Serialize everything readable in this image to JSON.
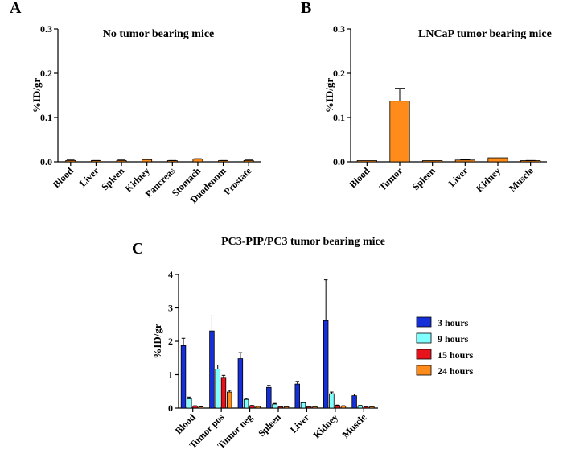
{
  "chart_data": [
    {
      "panel": "A",
      "type": "bar",
      "title": "No tumor bearing mice",
      "ylabel": "%ID/gr",
      "ylim": [
        0,
        0.3
      ],
      "yticks": [
        "0.0",
        "0.1",
        "0.2",
        "0.3"
      ],
      "categories": [
        "Blood",
        "Liver",
        "Spleen",
        "Kidney",
        "Pancreas",
        "Stomach",
        "Duodenum",
        "Prostate"
      ],
      "series": [
        {
          "name": "No tumor bearing mice",
          "color": "#FF8C1A",
          "values": [
            0.003,
            0.002,
            0.003,
            0.005,
            0.002,
            0.006,
            0.002,
            0.003
          ],
          "errors": [
            0.001,
            0.001,
            0.001,
            0.001,
            0.001,
            0.001,
            0.001,
            0.001
          ]
        }
      ]
    },
    {
      "panel": "B",
      "type": "bar",
      "title": "LNCaP  tumor bearing mice",
      "ylabel": "%ID/gr",
      "ylim": [
        0,
        0.3
      ],
      "yticks": [
        "0.0",
        "0.1",
        "0.2",
        "0.3"
      ],
      "categories": [
        "Blood",
        "Tumor",
        "Spleen",
        "Liver",
        "Kidney",
        "Muscle"
      ],
      "series": [
        {
          "name": "LNCaP tumor bearing mice",
          "color": "#FF8C1A",
          "values": [
            0.001,
            0.137,
            0.002,
            0.004,
            0.009,
            0.002
          ],
          "errors": [
            0.0,
            0.029,
            0.0,
            0.001,
            0.0,
            0.001
          ]
        }
      ]
    },
    {
      "panel": "C",
      "type": "bar",
      "title": "PC3-PIP/PC3 tumor bearing mice",
      "ylabel": "%ID/gr",
      "ylim": [
        0,
        4
      ],
      "yticks": [
        "0",
        "1",
        "2",
        "3",
        "4"
      ],
      "categories": [
        "Blood",
        "Tumor pos",
        "Tumor neg",
        "Spleen",
        "Liver",
        "Kidney",
        "Muscle"
      ],
      "legend_position": "right",
      "series": [
        {
          "name": "3 hours",
          "color": "#1530D8",
          "values": [
            1.87,
            2.31,
            1.48,
            0.62,
            0.72,
            2.62,
            0.37
          ],
          "errors": [
            0.22,
            0.45,
            0.18,
            0.06,
            0.08,
            1.22,
            0.05
          ]
        },
        {
          "name": "9 hours",
          "color": "#7FFFFF",
          "values": [
            0.28,
            1.17,
            0.26,
            0.12,
            0.16,
            0.43,
            0.07
          ],
          "errors": [
            0.05,
            0.12,
            0.03,
            0.02,
            0.02,
            0.05,
            0.01
          ]
        },
        {
          "name": "15 hours",
          "color": "#E8121C",
          "values": [
            0.06,
            0.92,
            0.07,
            0.02,
            0.03,
            0.08,
            0.01
          ],
          "errors": [
            0.01,
            0.06,
            0.01,
            0.0,
            0.0,
            0.01,
            0.0
          ]
        },
        {
          "name": "24 hours",
          "color": "#FF8C1A",
          "values": [
            0.03,
            0.48,
            0.05,
            0.02,
            0.02,
            0.06,
            0.01
          ],
          "errors": [
            0.01,
            0.05,
            0.01,
            0.0,
            0.0,
            0.01,
            0.0
          ]
        }
      ]
    }
  ]
}
